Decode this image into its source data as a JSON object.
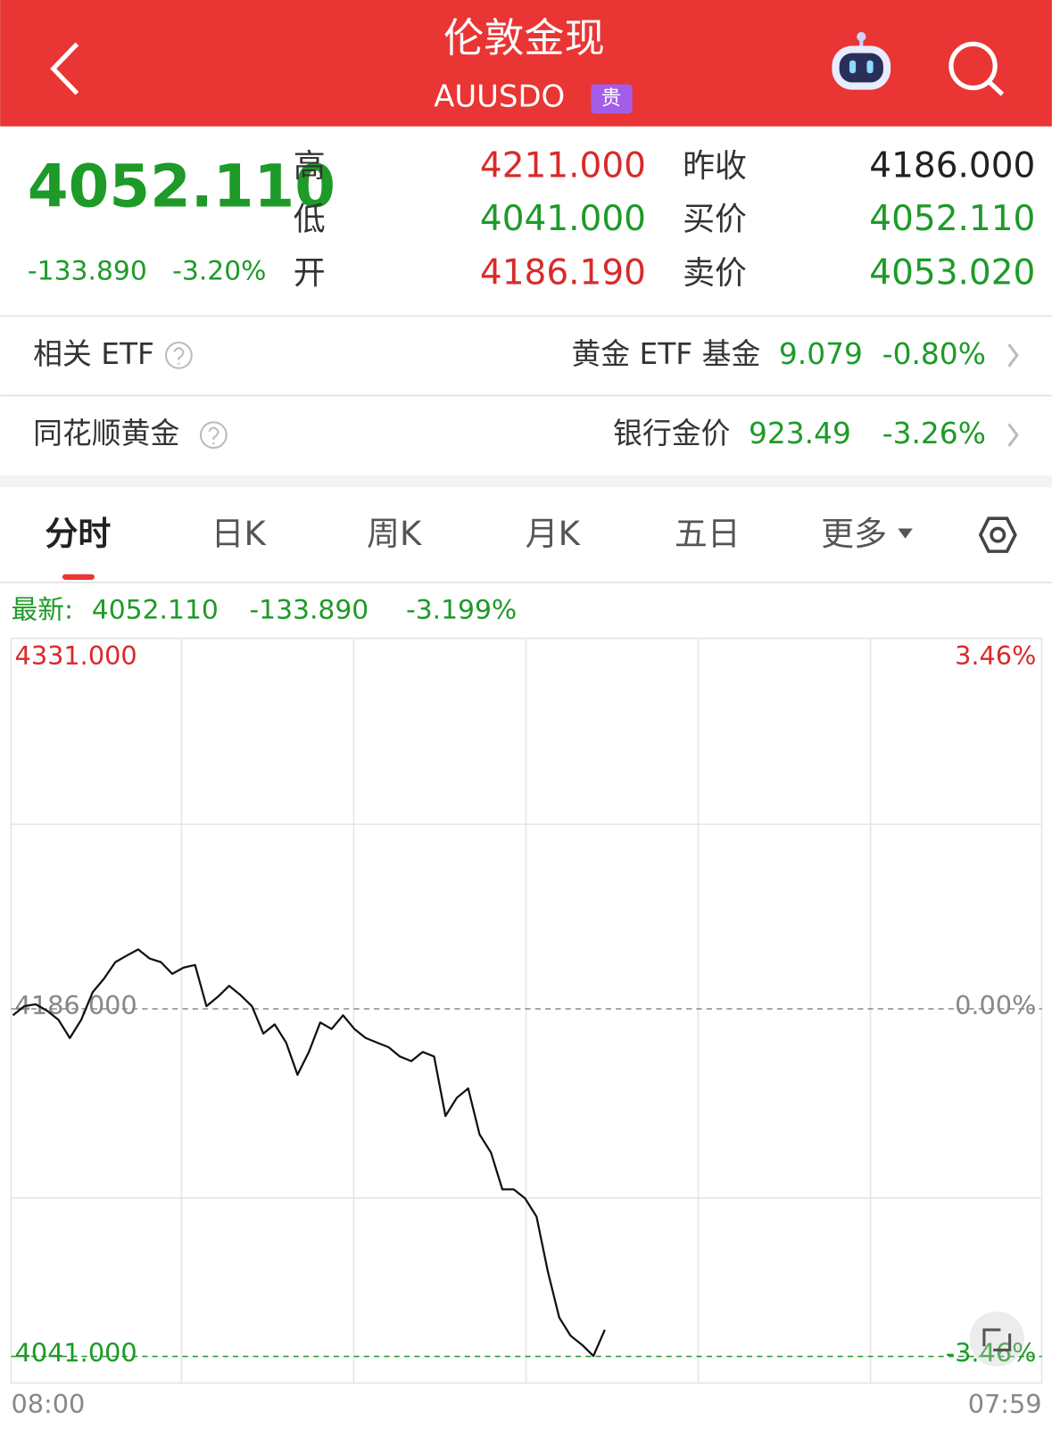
{
  "header": {
    "title": "伦敦金现",
    "code": "AUUSDO",
    "badge": "贵"
  },
  "quote": {
    "price": "4052.110",
    "change": "-133.890",
    "change_pct": "-3.20%",
    "left": [
      {
        "label": "高",
        "value": "4211.000"
      },
      {
        "label": "低",
        "value": "4041.000"
      },
      {
        "label": "开",
        "value": "4186.190"
      }
    ],
    "right": [
      {
        "label": "昨收",
        "value": "4186.000"
      },
      {
        "label": "买价",
        "value": "4052.110"
      },
      {
        "label": "卖价",
        "value": "4053.020"
      }
    ]
  },
  "related": [
    {
      "label": "相关 ETF",
      "name": "黄金 ETF 基金",
      "value": "9.079",
      "change": "-0.80%"
    },
    {
      "label": "同花顺黄金",
      "name": "银行金价",
      "value": "923.49",
      "change": "-3.26%"
    }
  ],
  "tabs": [
    "分时",
    "日K",
    "周K",
    "月K",
    "五日",
    "更多"
  ],
  "chart_data": {
    "type": "line",
    "latest_label": "最新:",
    "latest": "4052.110",
    "latest_change": "-133.890",
    "latest_pct": "-3.199%",
    "x_labels": [
      "08:00",
      "07:59"
    ],
    "ylim": [
      4041,
      4331
    ],
    "yticks": [
      {
        "value": 4331,
        "label": "4331.000"
      },
      {
        "value": 4186,
        "label": "4186.000"
      },
      {
        "value": 4041,
        "label": "4041.000"
      }
    ],
    "y2lim": [
      -3.46,
      3.46
    ],
    "y2ticks": [
      {
        "value": 3.46,
        "label": "3.46%"
      },
      {
        "value": 0,
        "label": "0.00%"
      },
      {
        "value": -3.46,
        "label": "-3.46%"
      }
    ],
    "label_colors": [
      "#d92a2a",
      "#888888",
      "#1d9a28"
    ],
    "color": "#111111",
    "series": [
      {
        "values": [
          4183.3,
          4187.1,
          4187.9,
          4185.2,
          4181.4,
          4173.8,
          4181.4,
          4192.9,
          4198.6,
          4205.5,
          4208.2,
          4210.8,
          4207.0,
          4205.5,
          4200.6,
          4203.2,
          4204.3,
          4187.1,
          4191.0,
          4195.6,
          4191.7,
          4187.1,
          4175.7,
          4179.5,
          4171.9,
          4158.5,
          4168.0,
          4180.3,
          4177.6,
          4183.3,
          4177.6,
          4173.8,
          4171.9,
          4170.0,
          4166.1,
          4164.2,
          4168.0,
          4166.1,
          4141.3,
          4148.9,
          4152.8,
          4133.6,
          4126.0,
          4110.7,
          4110.7,
          4106.9,
          4099.3,
          4076.3,
          4057.2,
          4049.6,
          4045.8,
          4041.2,
          4052.1
        ]
      }
    ]
  }
}
